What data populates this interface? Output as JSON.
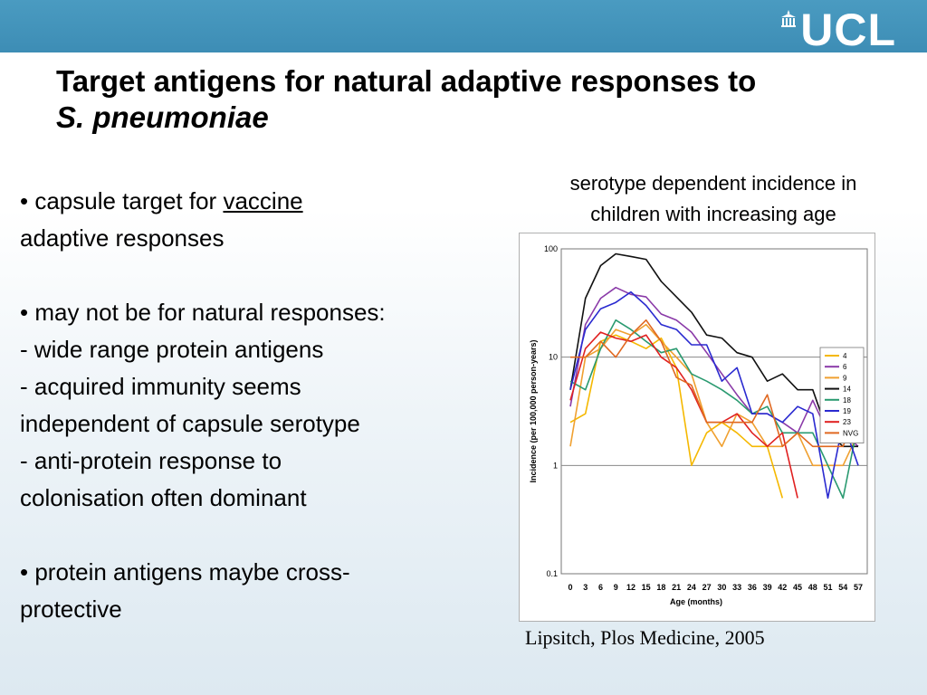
{
  "header": {
    "logo_text": "UCL"
  },
  "slide": {
    "title_line1": "Target antigens for natural adaptive responses to",
    "title_line2": "S. pneumoniae",
    "bullets": {
      "b1_prefix": "• capsule target for ",
      "b1_underlined": "vaccine",
      "b1_line2": "adaptive responses",
      "b2_line1": "• may not be for natural responses:",
      "b2_line2": "- wide range protein antigens",
      "b2_line3": "- acquired immunity seems",
      "b2_line4": "independent of capsule serotype",
      "b2_line5": "- anti-protein response to",
      "b2_line6": "colonisation often dominant",
      "b3_line1": "• protein antigens maybe cross-",
      "b3_line2": "protective"
    },
    "chart_caption_line1": "serotype dependent incidence in",
    "chart_caption_line2": "children with increasing age",
    "citation": "Lipsitch, Plos Medicine, 2005"
  },
  "chart_data": {
    "type": "line",
    "xlabel": "Age (months)",
    "ylabel": "Incidence (per 100,000 person-years)",
    "y_scale": "log",
    "ylim": [
      0.1,
      100
    ],
    "y_ticks": [
      0.1,
      1,
      10,
      100
    ],
    "y_tick_labels": [
      "0.1",
      "1",
      "10",
      "100"
    ],
    "x": [
      0,
      3,
      6,
      9,
      12,
      15,
      18,
      21,
      24,
      27,
      30,
      33,
      36,
      39,
      42,
      45,
      48,
      51,
      54,
      57
    ],
    "x_tick_labels": [
      "0",
      "3",
      "6",
      "9",
      "12",
      "15",
      "18",
      "21",
      "24",
      "27",
      "30",
      "33",
      "36",
      "39",
      "42",
      "45",
      "48",
      "51",
      "54",
      "57"
    ],
    "grid": "horizontal",
    "legend_position": "right",
    "series": [
      {
        "name": "4",
        "color": "#f5b800",
        "values": [
          2.5,
          3,
          14,
          16,
          14,
          12,
          15,
          8,
          1,
          2,
          2.5,
          2,
          1.5,
          1.5,
          0.5,
          null,
          null,
          null,
          null,
          null
        ]
      },
      {
        "name": "6",
        "color": "#8a3aa8",
        "values": [
          3.5,
          20,
          35,
          44,
          38,
          36,
          25,
          22,
          17,
          11,
          7,
          4.5,
          3,
          3,
          2.5,
          2,
          4,
          2,
          2,
          1.5
        ]
      },
      {
        "name": "9",
        "color": "#f0a030",
        "values": [
          1.5,
          10,
          12,
          18,
          16,
          20,
          14,
          10,
          7,
          2.5,
          1.5,
          3,
          2.5,
          1.5,
          1.5,
          2,
          1,
          1,
          1,
          2
        ]
      },
      {
        "name": "14",
        "color": "#111111",
        "values": [
          5,
          35,
          70,
          90,
          85,
          80,
          50,
          36,
          26,
          16,
          15,
          11,
          10,
          6,
          7,
          5,
          5,
          2,
          1.5,
          1.5
        ]
      },
      {
        "name": "18",
        "color": "#2a9a70",
        "values": [
          6,
          5,
          12,
          22,
          18,
          14,
          11,
          12,
          7,
          6,
          5,
          4,
          3,
          3.5,
          2,
          2,
          2,
          1,
          0.5,
          2.5
        ]
      },
      {
        "name": "19",
        "color": "#2a2ad0",
        "values": [
          5,
          18,
          28,
          32,
          40,
          30,
          20,
          18,
          13,
          13,
          6,
          8,
          3,
          3,
          2.5,
          3.5,
          3,
          0.5,
          2.5,
          1
        ]
      },
      {
        "name": "23",
        "color": "#e02020",
        "values": [
          4,
          12,
          17,
          15,
          14,
          16,
          10,
          8,
          5,
          2.5,
          2.5,
          3,
          2,
          1.5,
          2,
          0.5,
          null,
          null,
          null,
          null
        ]
      },
      {
        "name": "NVG",
        "color": "#e06820",
        "values": [
          10,
          10,
          14,
          10,
          16,
          22,
          14,
          6.5,
          5.5,
          2.5,
          2.5,
          2.5,
          2.5,
          4.5,
          1.5,
          2,
          1.5,
          1.5,
          1.5,
          3.5
        ]
      }
    ]
  }
}
